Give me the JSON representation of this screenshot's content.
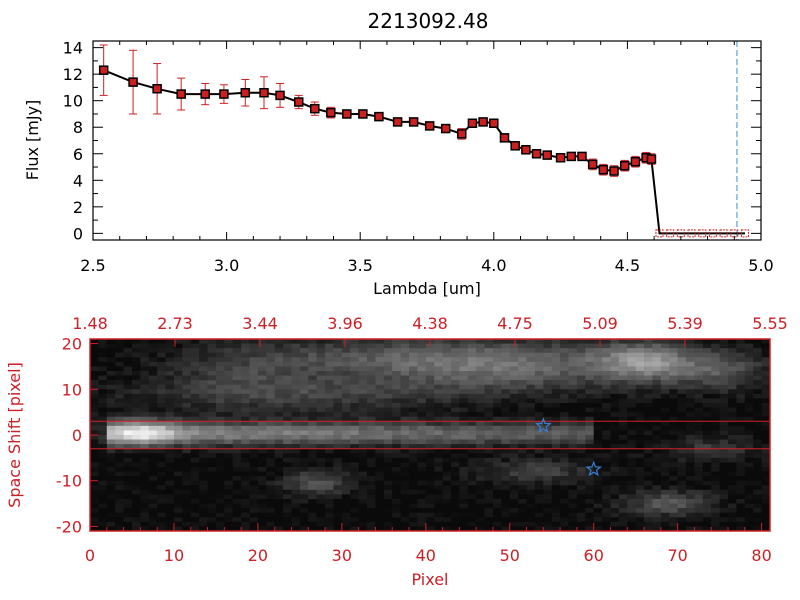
{
  "title": "2213092.48",
  "colors": {
    "line": "#000000",
    "errorbar": "#cc2020",
    "marker_fill": "#cc2020",
    "marker_edge": "#000000",
    "dashed_marker": "#3a8fd6",
    "axis_red": "#cc2027",
    "star": "#3a7fd6",
    "background": "#ffffff"
  },
  "chart_data": [
    {
      "type": "line",
      "xlabel": "Lambda [um]",
      "ylabel": "Flux [mJy]",
      "xlim": [
        2.5,
        5.0
      ],
      "ylim": [
        -0.5,
        14.5
      ],
      "xticks": [
        "2.5",
        "3.0",
        "3.5",
        "4.0",
        "4.5",
        "5.0"
      ],
      "xtick_values": [
        2.5,
        3.0,
        3.5,
        4.0,
        4.5,
        5.0
      ],
      "yticks": [
        "0",
        "2",
        "4",
        "6",
        "8",
        "10",
        "12",
        "14"
      ],
      "ytick_values": [
        0,
        2,
        4,
        6,
        8,
        10,
        12,
        14
      ],
      "vline_dashed_x": 4.91,
      "series": [
        {
          "x": [
            2.54,
            2.65,
            2.74,
            2.83,
            2.92,
            2.99,
            3.07,
            3.14,
            3.2,
            3.27,
            3.33,
            3.39,
            3.45,
            3.51,
            3.57,
            3.64,
            3.7,
            3.76,
            3.82,
            3.88,
            3.92,
            3.96,
            4.0,
            4.04,
            4.08,
            4.12,
            4.16,
            4.2,
            4.25,
            4.29,
            4.33,
            4.37,
            4.41,
            4.45,
            4.49,
            4.53,
            4.57,
            4.59,
            4.62,
            4.66,
            4.7,
            4.74,
            4.78,
            4.82,
            4.86,
            4.9,
            4.94
          ],
          "y": [
            12.3,
            11.4,
            10.9,
            10.5,
            10.5,
            10.5,
            10.6,
            10.6,
            10.4,
            9.9,
            9.4,
            9.1,
            9.0,
            9.0,
            8.8,
            8.4,
            8.4,
            8.1,
            7.9,
            7.5,
            8.3,
            8.4,
            8.3,
            7.2,
            6.6,
            6.3,
            6.0,
            5.9,
            5.7,
            5.8,
            5.8,
            5.2,
            4.8,
            4.7,
            5.1,
            5.4,
            5.7,
            5.6,
            0.0,
            0.0,
            0.0,
            0.0,
            0.0,
            0.0,
            0.0,
            0.0,
            0.0
          ],
          "yerr": [
            1.9,
            2.4,
            1.9,
            1.2,
            0.8,
            0.7,
            1.0,
            1.2,
            0.9,
            0.5,
            0.5,
            0.4,
            0.3,
            0.3,
            0.3,
            0.3,
            0.3,
            0.3,
            0.3,
            0.4,
            0.3,
            0.3,
            0.3,
            0.3,
            0.3,
            0.3,
            0.3,
            0.3,
            0.3,
            0.3,
            0.3,
            0.4,
            0.4,
            0.4,
            0.4,
            0.4,
            0.4,
            0.4,
            0.0,
            0.0,
            0.0,
            0.0,
            0.0,
            0.0,
            0.0,
            0.0,
            0.0
          ]
        }
      ]
    },
    {
      "type": "heatmap",
      "xlabel": "Pixel",
      "ylabel": "Space Shift [pixel]",
      "xlim": [
        0,
        81
      ],
      "ylim": [
        -21,
        21
      ],
      "xticks": [
        "0",
        "10",
        "20",
        "30",
        "40",
        "50",
        "60",
        "70",
        "80"
      ],
      "xtick_values": [
        0,
        10,
        20,
        30,
        40,
        50,
        60,
        70,
        80
      ],
      "yticks": [
        "-20",
        "-10",
        "0",
        "10",
        "20"
      ],
      "ytick_values": [
        -20,
        -10,
        0,
        10,
        20
      ],
      "top_axis_ticks": [
        "1.48",
        "2.73",
        "3.44",
        "3.96",
        "4.38",
        "4.75",
        "5.09",
        "5.39",
        "5.55"
      ],
      "extraction_lines_y": [
        3,
        -3
      ],
      "stars": [
        {
          "x": 54,
          "y": 2
        },
        {
          "x": 60,
          "y": -7.5
        }
      ]
    }
  ]
}
